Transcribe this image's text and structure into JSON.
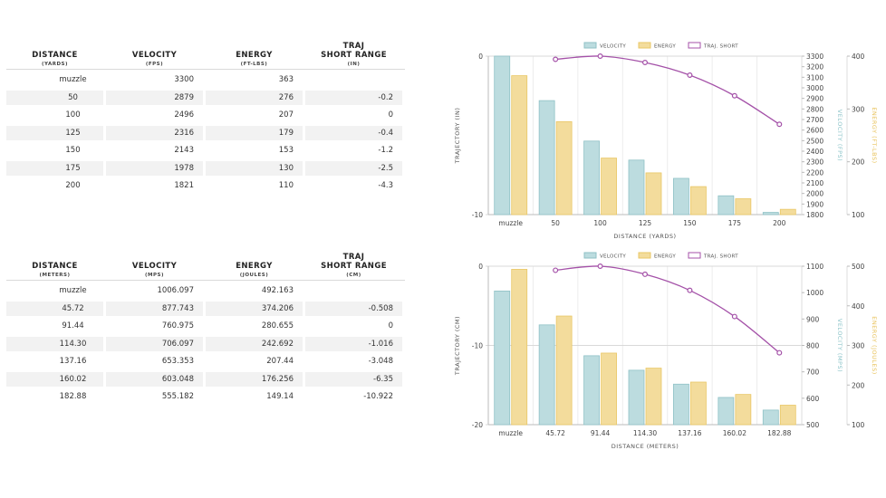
{
  "table_imperial": {
    "headers": [
      {
        "title": "DISTANCE",
        "unit": "(YARDS)"
      },
      {
        "title": "VELOCITY",
        "unit": "(FPS)"
      },
      {
        "title": "ENERGY",
        "unit": "(FT-LBS)"
      },
      {
        "title": "TRAJ\nSHORT RANGE",
        "unit": "(IN)"
      }
    ],
    "rows": [
      [
        "muzzle",
        "3300",
        "363",
        ""
      ],
      [
        "50",
        "2879",
        "276",
        "-0.2"
      ],
      [
        "100",
        "2496",
        "207",
        "0"
      ],
      [
        "125",
        "2316",
        "179",
        "-0.4"
      ],
      [
        "150",
        "2143",
        "153",
        "-1.2"
      ],
      [
        "175",
        "1978",
        "130",
        "-2.5"
      ],
      [
        "200",
        "1821",
        "110",
        "-4.3"
      ]
    ]
  },
  "table_metric": {
    "headers": [
      {
        "title": "DISTANCE",
        "unit": "(METERS)"
      },
      {
        "title": "VELOCITY",
        "unit": "(MPS)"
      },
      {
        "title": "ENERGY",
        "unit": "(JOULES)"
      },
      {
        "title": "TRAJ\nSHORT RANGE",
        "unit": "(CM)"
      }
    ],
    "rows": [
      [
        "muzzle",
        "1006.097",
        "492.163",
        ""
      ],
      [
        "45.72",
        "877.743",
        "374.206",
        "-0.508"
      ],
      [
        "91.44",
        "760.975",
        "280.655",
        "0"
      ],
      [
        "114.30",
        "706.097",
        "242.692",
        "-1.016"
      ],
      [
        "137.16",
        "653.353",
        "207.44",
        "-3.048"
      ],
      [
        "160.02",
        "603.048",
        "176.256",
        "-6.35"
      ],
      [
        "182.88",
        "555.182",
        "149.14",
        "-10.922"
      ]
    ]
  },
  "colors": {
    "velocity_fill": "#bcdcdf",
    "velocity_stroke": "#8fc1c6",
    "energy_fill": "#f3dc9c",
    "energy_stroke": "#e9c766",
    "traj": "#a451a8",
    "grid": "#d9d9d9",
    "velocity_axis_label": "#8cc4c9",
    "energy_axis_label": "#e8c25a"
  },
  "chart_data": [
    {
      "type": "bar",
      "legend": [
        "VELOCITY",
        "ENERGY",
        "TRAJ. SHORT"
      ],
      "categories": [
        "muzzle",
        "50",
        "100",
        "125",
        "150",
        "175",
        "200"
      ],
      "xlabel": "DISTANCE (YARDS)",
      "series": [
        {
          "name": "VELOCITY",
          "axis": "right1",
          "values": [
            3300,
            2879,
            2496,
            2316,
            2143,
            1978,
            1821
          ]
        },
        {
          "name": "ENERGY",
          "axis": "right2",
          "values": [
            363,
            276,
            207,
            179,
            153,
            130,
            110
          ]
        },
        {
          "name": "TRAJ. SHORT",
          "type": "line",
          "axis": "left",
          "values": [
            null,
            -0.2,
            0,
            -0.4,
            -1.2,
            -2.5,
            -4.3
          ]
        }
      ],
      "left_axis": {
        "label": "TRAJECTORY (IN)",
        "min": -10,
        "max": 0,
        "ticks": [
          0,
          -10
        ]
      },
      "right1_axis": {
        "label": "VELOCITY (FPS)",
        "min": 1800,
        "max": 3300,
        "ticks": [
          3300,
          3200,
          3100,
          3000,
          2900,
          2800,
          2700,
          2600,
          2500,
          2400,
          2300,
          2200,
          2100,
          2000,
          1900,
          1800
        ]
      },
      "right2_axis": {
        "label": "ENERGY (FT-LBS)",
        "min": 100,
        "max": 400,
        "ticks": [
          400,
          300,
          200,
          100
        ]
      }
    },
    {
      "type": "bar",
      "legend": [
        "VELOCITY",
        "ENERGY",
        "TRAJ. SHORT"
      ],
      "categories": [
        "muzzle",
        "45.72",
        "91.44",
        "114.30",
        "137.16",
        "160.02",
        "182.88"
      ],
      "xlabel": "DISTANCE (METERS)",
      "series": [
        {
          "name": "VELOCITY",
          "axis": "right1",
          "values": [
            1006.097,
            877.743,
            760.975,
            706.097,
            653.353,
            603.048,
            555.182
          ]
        },
        {
          "name": "ENERGY",
          "axis": "right2",
          "values": [
            492.163,
            374.206,
            280.655,
            242.692,
            207.44,
            176.256,
            149.14
          ]
        },
        {
          "name": "TRAJ. SHORT",
          "type": "line",
          "axis": "left",
          "values": [
            null,
            -0.508,
            0,
            -1.016,
            -3.048,
            -6.35,
            -10.922
          ]
        }
      ],
      "left_axis": {
        "label": "TRAJECTORY (CM)",
        "min": -20,
        "max": 0,
        "ticks": [
          0,
          -10,
          -20
        ]
      },
      "right1_axis": {
        "label": "VELOCITY (MPS)",
        "min": 500,
        "max": 1100,
        "ticks": [
          1100,
          1000,
          900,
          800,
          700,
          600,
          500
        ]
      },
      "right2_axis": {
        "label": "ENERGY (JOULES)",
        "min": 100,
        "max": 500,
        "ticks": [
          500,
          400,
          300,
          200,
          100
        ]
      }
    }
  ]
}
